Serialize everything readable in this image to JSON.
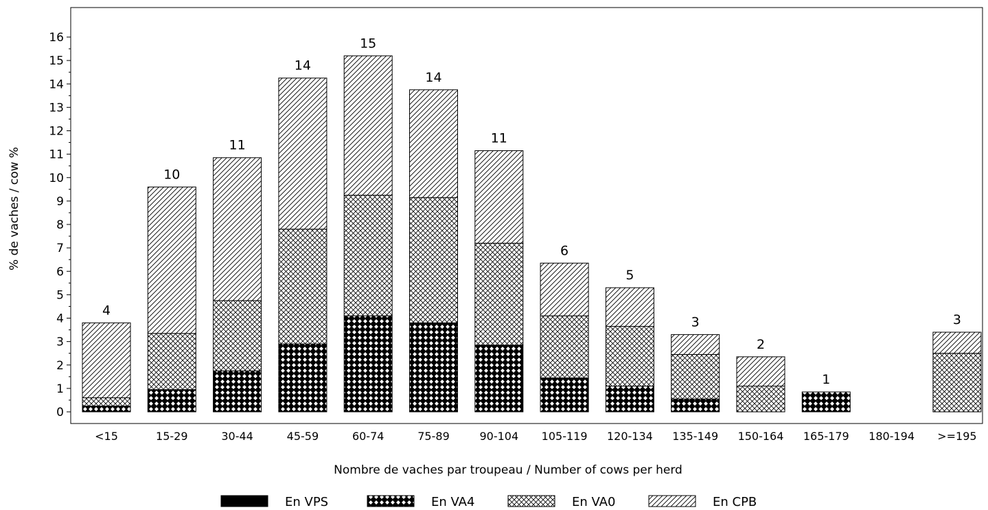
{
  "chart_data": {
    "type": "bar",
    "stacked": true,
    "xlabel": "Nombre de vaches par troupeau / Number of cows per herd",
    "ylabel": "% de vaches / cow %",
    "ylim": [
      0,
      16
    ],
    "yticks": [
      "0",
      "1",
      "2",
      "3",
      "4",
      "5",
      "6",
      "7",
      "8",
      "9",
      "10",
      "11",
      "12",
      "13",
      "14",
      "15",
      "16"
    ],
    "grid": false,
    "legend_position": "bottom",
    "categories": [
      "<15",
      "15-29",
      "30-44",
      "45-59",
      "60-74",
      "75-89",
      "90-104",
      "105-119",
      "120-134",
      "135-149",
      "150-164",
      "165-179",
      "180-194",
      ">=195"
    ],
    "series": [
      {
        "name": "En VPS",
        "pattern": "solid",
        "values": [
          0,
          0,
          0,
          0,
          0,
          0,
          0,
          0,
          0,
          0,
          0,
          0,
          0,
          0
        ]
      },
      {
        "name": "En VA4",
        "pattern": "dense-cross",
        "values": [
          0.25,
          0.95,
          1.75,
          2.9,
          4.1,
          3.8,
          2.85,
          1.45,
          1.1,
          0.55,
          0,
          0.85,
          0,
          0
        ]
      },
      {
        "name": "En VA0",
        "pattern": "cross",
        "values": [
          0.35,
          2.4,
          3.0,
          4.9,
          5.15,
          5.35,
          4.35,
          2.65,
          2.55,
          1.9,
          1.1,
          0,
          0,
          2.5
        ]
      },
      {
        "name": "En CPB",
        "pattern": "diagonal",
        "values": [
          3.2,
          6.25,
          6.1,
          6.45,
          5.95,
          4.6,
          3.95,
          2.25,
          1.65,
          0.85,
          1.25,
          0,
          0,
          0.9
        ]
      }
    ],
    "totals": [
      "4",
      "10",
      "11",
      "14",
      "15",
      "14",
      "11",
      "6",
      "5",
      "3",
      "2",
      "1",
      "",
      ""
    ],
    "totals_extra": [
      "",
      "",
      "",
      "",
      "",
      "",
      "",
      "",
      "",
      "",
      "",
      "",
      "",
      "3"
    ]
  }
}
